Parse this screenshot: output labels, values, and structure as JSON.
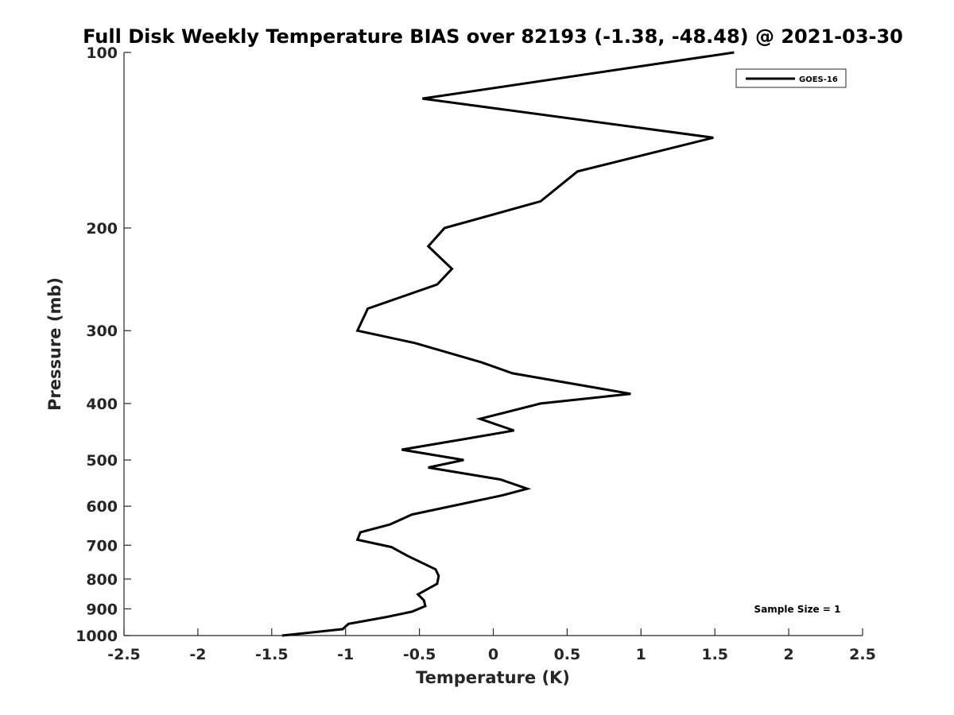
{
  "chart_data": {
    "type": "line",
    "title": "Full Disk Weekly Temperature BIAS over 82193 (-1.38, -48.48) @ 2021-03-30",
    "xlabel": "Temperature (K)",
    "ylabel": "Pressure (mb)",
    "xlim": [
      -2.5,
      2.5
    ],
    "ylim": [
      100,
      1000
    ],
    "y_scale": "log",
    "y_reversed": true,
    "grid": false,
    "legend_position": "top-right",
    "x_ticks": [
      -2.5,
      -2,
      -1.5,
      -1,
      -0.5,
      0,
      0.5,
      1,
      1.5,
      2,
      2.5
    ],
    "x_tick_labels": [
      "-2.5",
      "-2",
      "-1.5",
      "-1",
      "-0.5",
      "0",
      "0.5",
      "1",
      "1.5",
      "2",
      "2.5"
    ],
    "y_ticks": [
      100,
      200,
      300,
      400,
      500,
      600,
      700,
      800,
      900,
      1000
    ],
    "y_tick_labels": [
      "100",
      "200",
      "300",
      "400",
      "500",
      "600",
      "700",
      "800",
      "900",
      "1000"
    ],
    "series": [
      {
        "name": "GOES-16",
        "color": "#000000",
        "points": [
          {
            "x": 1.63,
            "y": 100
          },
          {
            "x": -0.48,
            "y": 120
          },
          {
            "x": 1.49,
            "y": 140
          },
          {
            "x": 0.57,
            "y": 160
          },
          {
            "x": 0.32,
            "y": 180
          },
          {
            "x": -0.33,
            "y": 200
          },
          {
            "x": -0.44,
            "y": 215
          },
          {
            "x": -0.28,
            "y": 235
          },
          {
            "x": -0.38,
            "y": 250
          },
          {
            "x": -0.85,
            "y": 275
          },
          {
            "x": -0.92,
            "y": 300
          },
          {
            "x": -0.53,
            "y": 315
          },
          {
            "x": -0.08,
            "y": 340
          },
          {
            "x": 0.13,
            "y": 355
          },
          {
            "x": 0.93,
            "y": 385
          },
          {
            "x": 0.32,
            "y": 400
          },
          {
            "x": -0.09,
            "y": 425
          },
          {
            "x": 0.14,
            "y": 445
          },
          {
            "x": -0.19,
            "y": 460
          },
          {
            "x": -0.62,
            "y": 480
          },
          {
            "x": -0.2,
            "y": 500
          },
          {
            "x": -0.44,
            "y": 515
          },
          {
            "x": 0.05,
            "y": 540
          },
          {
            "x": 0.23,
            "y": 560
          },
          {
            "x": 0.06,
            "y": 575
          },
          {
            "x": -0.55,
            "y": 620
          },
          {
            "x": -0.7,
            "y": 645
          },
          {
            "x": -0.9,
            "y": 665
          },
          {
            "x": -0.92,
            "y": 685
          },
          {
            "x": -0.69,
            "y": 705
          },
          {
            "x": -0.58,
            "y": 730
          },
          {
            "x": -0.39,
            "y": 770
          },
          {
            "x": -0.37,
            "y": 790
          },
          {
            "x": -0.38,
            "y": 815
          },
          {
            "x": -0.51,
            "y": 850
          },
          {
            "x": -0.47,
            "y": 870
          },
          {
            "x": -0.46,
            "y": 890
          },
          {
            "x": -0.55,
            "y": 910
          },
          {
            "x": -0.73,
            "y": 930
          },
          {
            "x": -0.98,
            "y": 955
          },
          {
            "x": -1.02,
            "y": 975
          },
          {
            "x": -1.43,
            "y": 1000
          }
        ]
      }
    ],
    "annotations": [
      "Sample Size = 1"
    ]
  }
}
